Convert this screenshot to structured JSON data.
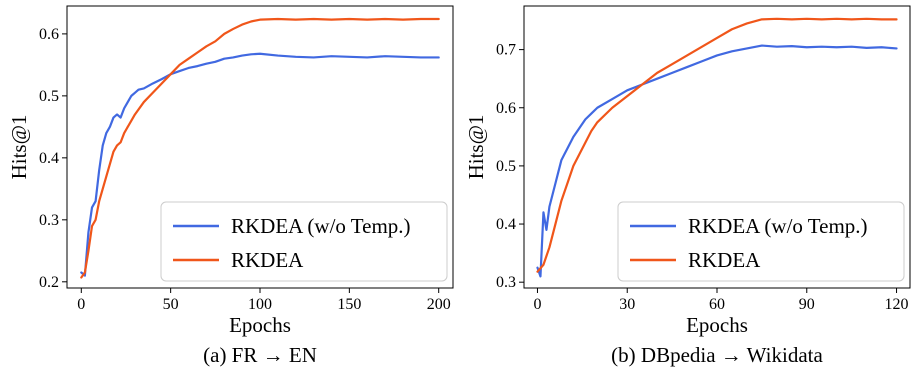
{
  "chart_data": [
    {
      "type": "line",
      "caption": "(a) FR → EN",
      "xlabel": "Epochs",
      "ylabel": "Hits@1",
      "xlim": [
        -8,
        208
      ],
      "ylim": [
        0.19,
        0.645
      ],
      "xticks": [
        0,
        50,
        100,
        150,
        200
      ],
      "yticks": [
        0.2,
        0.3,
        0.4,
        0.5,
        0.6
      ],
      "ytick_labels": [
        "0.2",
        "0.3",
        "0.4",
        "0.5",
        "0.6"
      ],
      "legend_position": "lower-right",
      "grid": false,
      "series": [
        {
          "name": "RKDEA (w/o Temp.)",
          "color": "#4169e1",
          "points": [
            [
              0,
              0.215
            ],
            [
              2,
              0.21
            ],
            [
              4,
              0.28
            ],
            [
              6,
              0.32
            ],
            [
              8,
              0.33
            ],
            [
              10,
              0.38
            ],
            [
              12,
              0.42
            ],
            [
              14,
              0.44
            ],
            [
              16,
              0.45
            ],
            [
              18,
              0.465
            ],
            [
              20,
              0.47
            ],
            [
              22,
              0.465
            ],
            [
              24,
              0.48
            ],
            [
              26,
              0.49
            ],
            [
              28,
              0.5
            ],
            [
              30,
              0.505
            ],
            [
              32,
              0.51
            ],
            [
              35,
              0.512
            ],
            [
              40,
              0.52
            ],
            [
              45,
              0.527
            ],
            [
              50,
              0.535
            ],
            [
              55,
              0.54
            ],
            [
              60,
              0.545
            ],
            [
              65,
              0.548
            ],
            [
              70,
              0.552
            ],
            [
              75,
              0.555
            ],
            [
              80,
              0.56
            ],
            [
              85,
              0.562
            ],
            [
              90,
              0.565
            ],
            [
              95,
              0.567
            ],
            [
              100,
              0.568
            ],
            [
              110,
              0.565
            ],
            [
              120,
              0.563
            ],
            [
              130,
              0.562
            ],
            [
              140,
              0.564
            ],
            [
              150,
              0.563
            ],
            [
              160,
              0.562
            ],
            [
              170,
              0.564
            ],
            [
              180,
              0.563
            ],
            [
              190,
              0.562
            ],
            [
              200,
              0.562
            ]
          ]
        },
        {
          "name": "RKDEA",
          "color": "#f0561a",
          "points": [
            [
              0,
              0.207
            ],
            [
              2,
              0.215
            ],
            [
              4,
              0.25
            ],
            [
              6,
              0.29
            ],
            [
              8,
              0.3
            ],
            [
              10,
              0.33
            ],
            [
              12,
              0.35
            ],
            [
              14,
              0.37
            ],
            [
              16,
              0.39
            ],
            [
              18,
              0.41
            ],
            [
              20,
              0.42
            ],
            [
              22,
              0.425
            ],
            [
              24,
              0.44
            ],
            [
              26,
              0.45
            ],
            [
              28,
              0.46
            ],
            [
              30,
              0.47
            ],
            [
              35,
              0.49
            ],
            [
              40,
              0.505
            ],
            [
              45,
              0.52
            ],
            [
              50,
              0.535
            ],
            [
              55,
              0.55
            ],
            [
              60,
              0.56
            ],
            [
              65,
              0.57
            ],
            [
              70,
              0.58
            ],
            [
              75,
              0.588
            ],
            [
              80,
              0.6
            ],
            [
              85,
              0.608
            ],
            [
              90,
              0.615
            ],
            [
              95,
              0.62
            ],
            [
              100,
              0.623
            ],
            [
              110,
              0.624
            ],
            [
              120,
              0.623
            ],
            [
              130,
              0.624
            ],
            [
              140,
              0.623
            ],
            [
              150,
              0.624
            ],
            [
              160,
              0.623
            ],
            [
              170,
              0.624
            ],
            [
              180,
              0.623
            ],
            [
              190,
              0.624
            ],
            [
              200,
              0.624
            ]
          ]
        }
      ]
    },
    {
      "type": "line",
      "caption": "(b) DBpedia → Wikidata",
      "xlabel": "Epochs",
      "ylabel": "Hits@1",
      "xlim": [
        -4.5,
        124.5
      ],
      "ylim": [
        0.29,
        0.775
      ],
      "xticks": [
        0,
        30,
        60,
        90,
        120
      ],
      "yticks": [
        0.3,
        0.4,
        0.5,
        0.6,
        0.7
      ],
      "ytick_labels": [
        "0.3",
        "0.4",
        "0.5",
        "0.6",
        "0.7"
      ],
      "legend_position": "lower-right",
      "grid": false,
      "series": [
        {
          "name": "RKDEA (w/o Temp.)",
          "color": "#4169e1",
          "points": [
            [
              0,
              0.325
            ],
            [
              1,
              0.31
            ],
            [
              2,
              0.42
            ],
            [
              3,
              0.39
            ],
            [
              4,
              0.43
            ],
            [
              5,
              0.45
            ],
            [
              6,
              0.47
            ],
            [
              7,
              0.49
            ],
            [
              8,
              0.51
            ],
            [
              9,
              0.52
            ],
            [
              10,
              0.53
            ],
            [
              12,
              0.55
            ],
            [
              14,
              0.565
            ],
            [
              16,
              0.58
            ],
            [
              18,
              0.59
            ],
            [
              20,
              0.6
            ],
            [
              25,
              0.615
            ],
            [
              30,
              0.63
            ],
            [
              35,
              0.64
            ],
            [
              40,
              0.65
            ],
            [
              45,
              0.66
            ],
            [
              50,
              0.67
            ],
            [
              55,
              0.68
            ],
            [
              60,
              0.69
            ],
            [
              65,
              0.697
            ],
            [
              70,
              0.702
            ],
            [
              75,
              0.707
            ],
            [
              80,
              0.705
            ],
            [
              85,
              0.706
            ],
            [
              90,
              0.704
            ],
            [
              95,
              0.705
            ],
            [
              100,
              0.704
            ],
            [
              105,
              0.705
            ],
            [
              110,
              0.703
            ],
            [
              115,
              0.704
            ],
            [
              120,
              0.702
            ]
          ]
        },
        {
          "name": "RKDEA",
          "color": "#f0561a",
          "points": [
            [
              0,
              0.318
            ],
            [
              2,
              0.33
            ],
            [
              4,
              0.36
            ],
            [
              6,
              0.4
            ],
            [
              8,
              0.44
            ],
            [
              10,
              0.47
            ],
            [
              12,
              0.5
            ],
            [
              14,
              0.52
            ],
            [
              16,
              0.54
            ],
            [
              18,
              0.56
            ],
            [
              20,
              0.575
            ],
            [
              25,
              0.6
            ],
            [
              30,
              0.62
            ],
            [
              35,
              0.64
            ],
            [
              40,
              0.66
            ],
            [
              45,
              0.675
            ],
            [
              50,
              0.69
            ],
            [
              55,
              0.705
            ],
            [
              60,
              0.72
            ],
            [
              65,
              0.735
            ],
            [
              70,
              0.745
            ],
            [
              75,
              0.752
            ],
            [
              80,
              0.753
            ],
            [
              85,
              0.752
            ],
            [
              90,
              0.753
            ],
            [
              95,
              0.752
            ],
            [
              100,
              0.753
            ],
            [
              105,
              0.752
            ],
            [
              110,
              0.753
            ],
            [
              115,
              0.752
            ],
            [
              120,
              0.752
            ]
          ]
        }
      ]
    }
  ]
}
